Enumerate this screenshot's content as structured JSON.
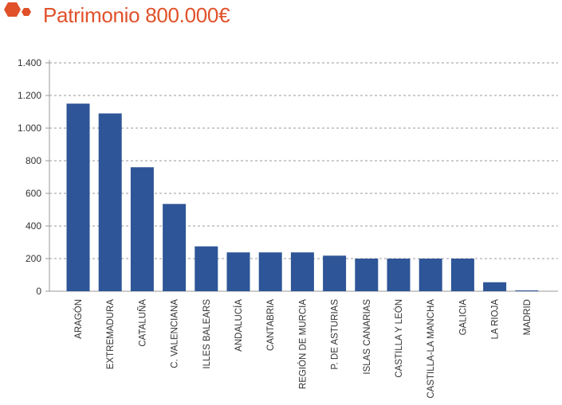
{
  "header": {
    "title": "Patrimonio 800.000€",
    "icon": "hexagons-icon",
    "accent_color": "#e0512a"
  },
  "chart_data": {
    "type": "bar",
    "title": "Patrimonio 800.000€",
    "xlabel": "",
    "ylabel": "",
    "categories": [
      "ARAGÓN",
      "EXTREMADURA",
      "CATALUÑA",
      "C. VALENCIANA",
      "ILLES BALEARS",
      "ANDALUCÍA",
      "CANTABRIA",
      "REGIÓN DE MURCIA",
      "P. DE ASTURIAS",
      "ISLAS CANARIAS",
      "CASTILLA Y LEÓN",
      "CASTILLA-LA MANCHA",
      "GALICIA",
      "LA RIOJA",
      "MADRID"
    ],
    "values": [
      1150,
      1090,
      760,
      535,
      275,
      238,
      238,
      238,
      218,
      200,
      200,
      200,
      200,
      55,
      5
    ],
    "ylim": [
      0,
      1400
    ],
    "yticks": [
      0,
      200,
      400,
      600,
      800,
      1000,
      1200,
      1400
    ],
    "ytick_labels": [
      "0",
      "200",
      "400",
      "600",
      "800",
      "1.000",
      "1.200",
      "1.400"
    ],
    "grid": true,
    "grid_style": "dashed",
    "bar_color": "#2e5597",
    "legend": "none"
  }
}
